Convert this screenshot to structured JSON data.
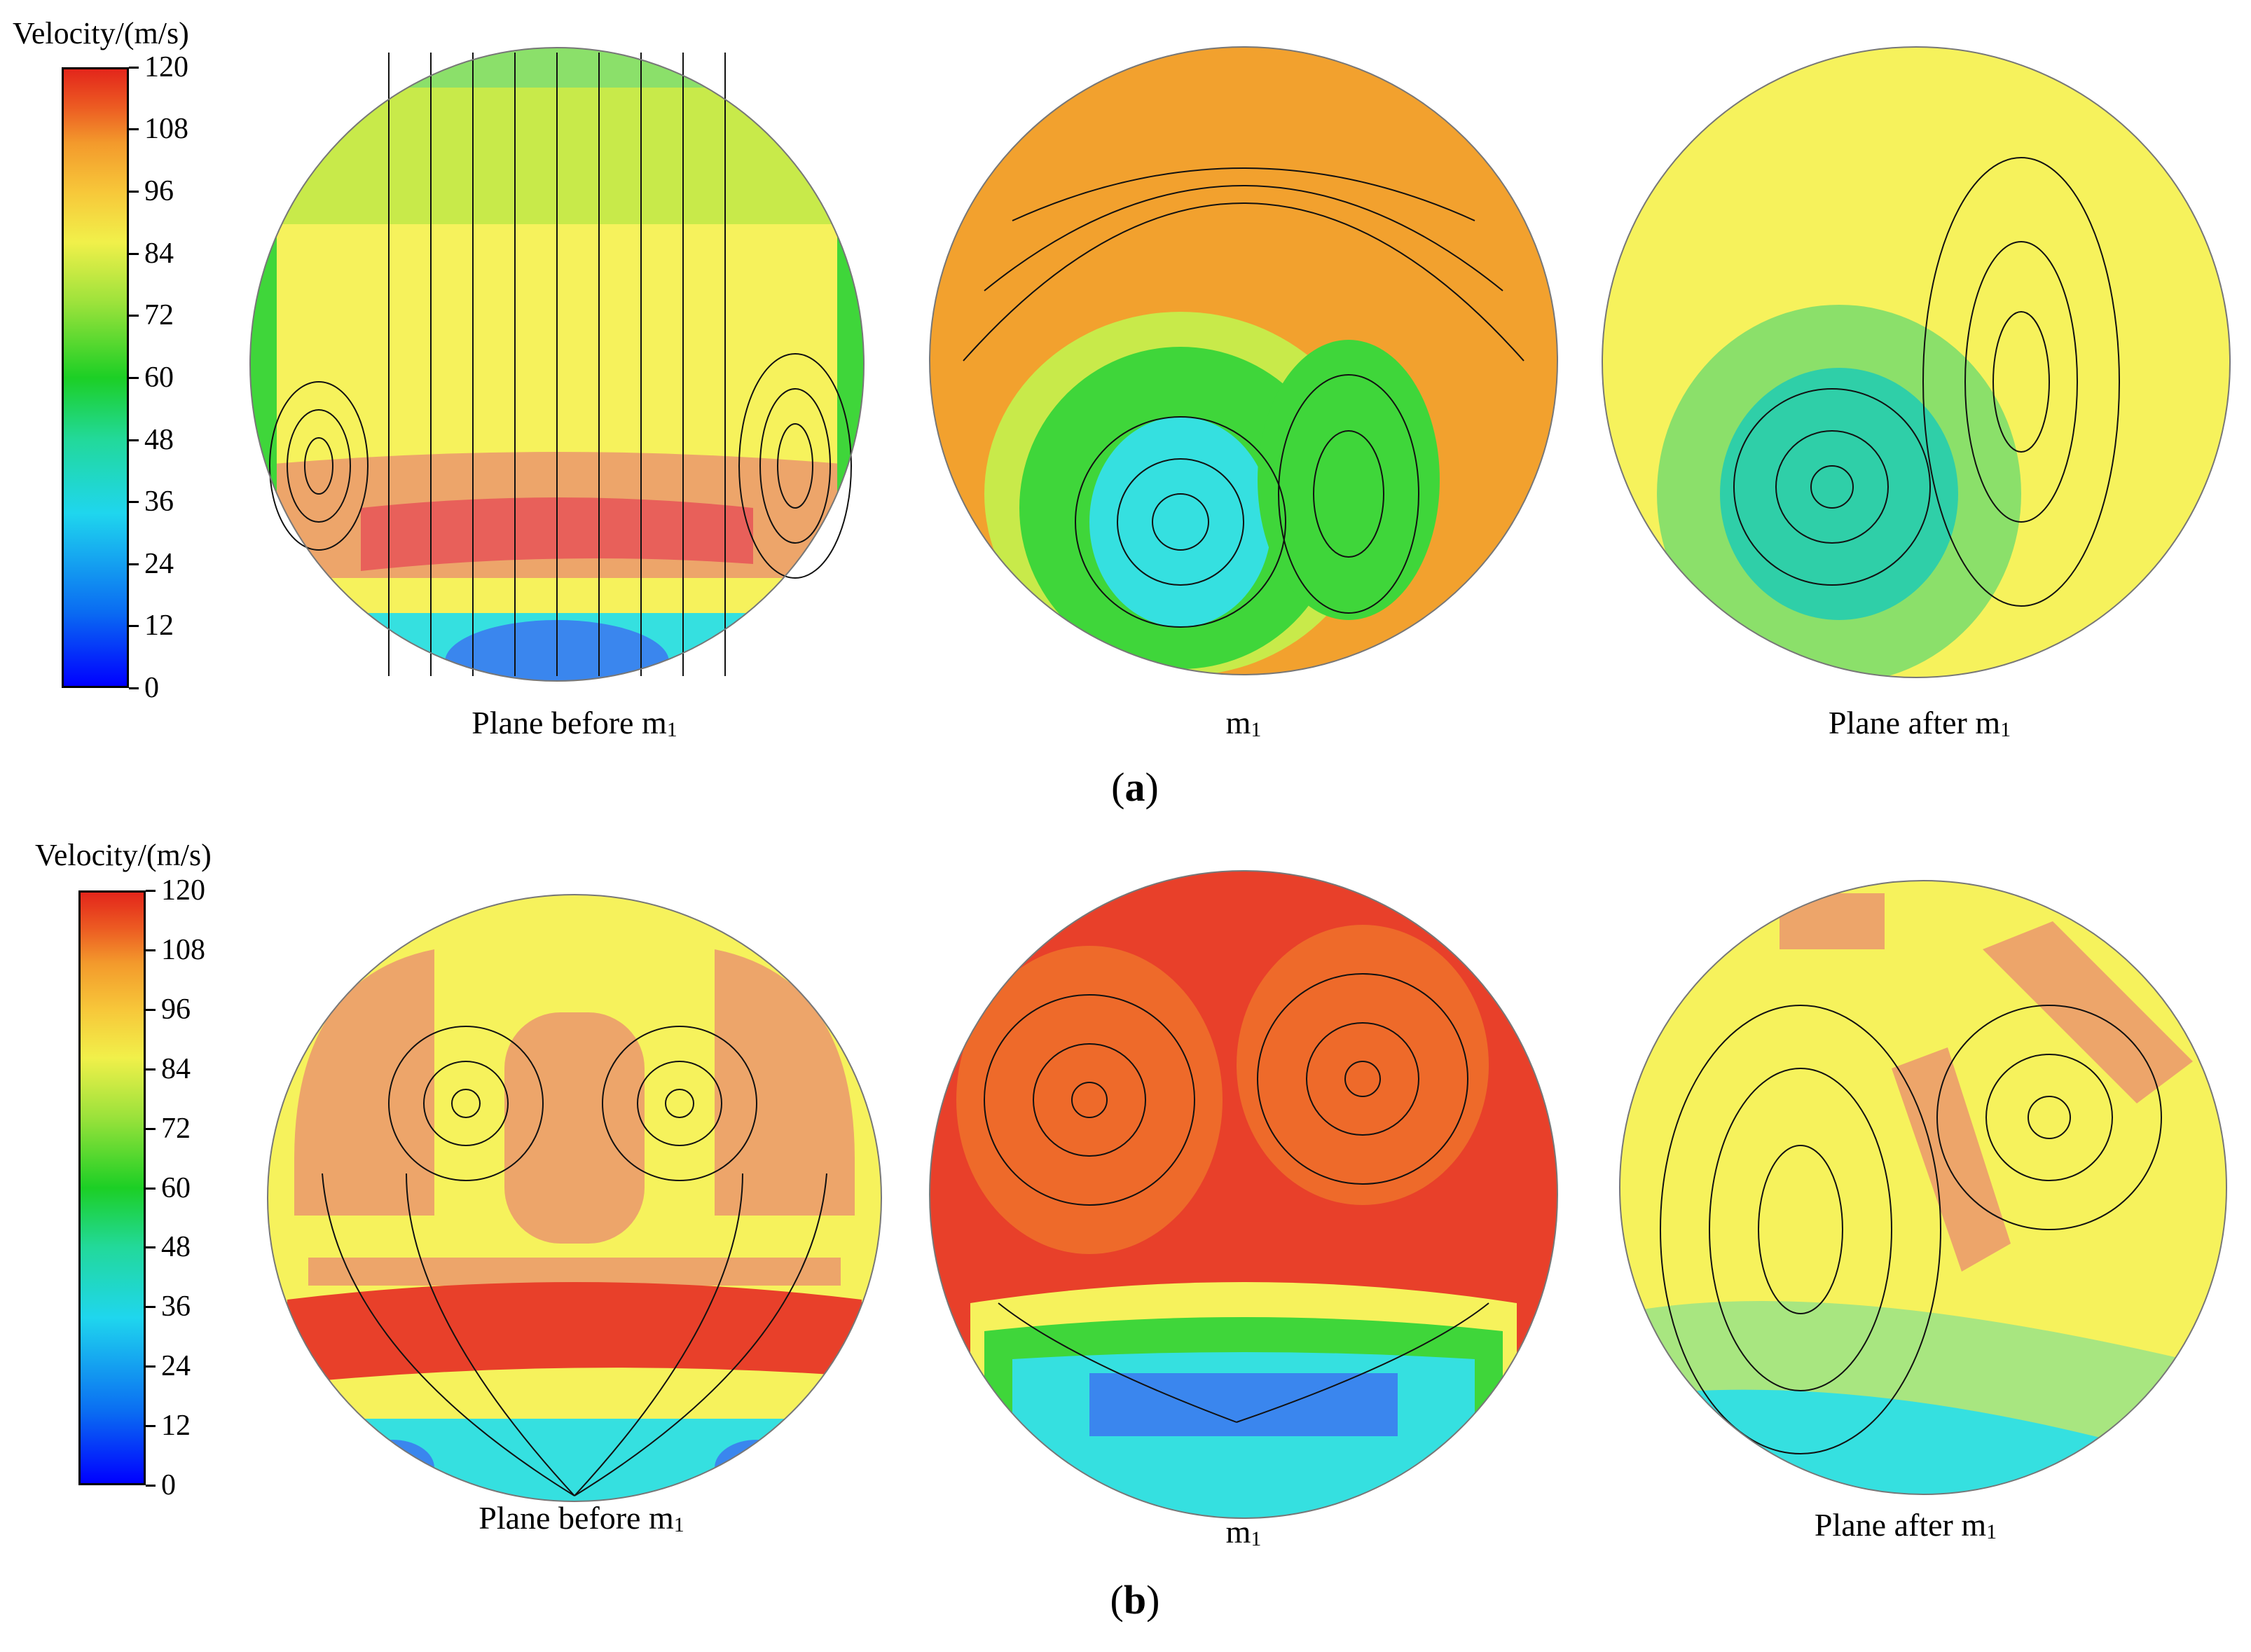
{
  "colorbar": {
    "title": "Velocity/(m/s)",
    "ticks": [
      "120",
      "108",
      "96",
      "84",
      "72",
      "60",
      "48",
      "36",
      "24",
      "12",
      "0"
    ]
  },
  "panels": [
    {
      "label": "a",
      "plots": [
        {
          "caption_main": "Plane before m",
          "caption_sub": "1"
        },
        {
          "caption_main": "m",
          "caption_sub": "1"
        },
        {
          "caption_main": "Plane after m",
          "caption_sub": "1"
        }
      ]
    },
    {
      "label": "b",
      "plots": [
        {
          "caption_main": "Plane before m",
          "caption_sub": "1"
        },
        {
          "caption_main": "m",
          "caption_sub": "1"
        },
        {
          "caption_main": "Plane after m",
          "caption_sub": "1"
        }
      ]
    }
  ],
  "colors": {
    "red": "#e8402a",
    "orange": "#f2a12e",
    "salmon": "#eda56a",
    "yellow": "#f6f25c",
    "lime": "#c8ea4a",
    "green": "#3fd63a",
    "cyan": "#35e0e0",
    "blue": "#3a86ee",
    "teal": "#2fcfa8"
  }
}
